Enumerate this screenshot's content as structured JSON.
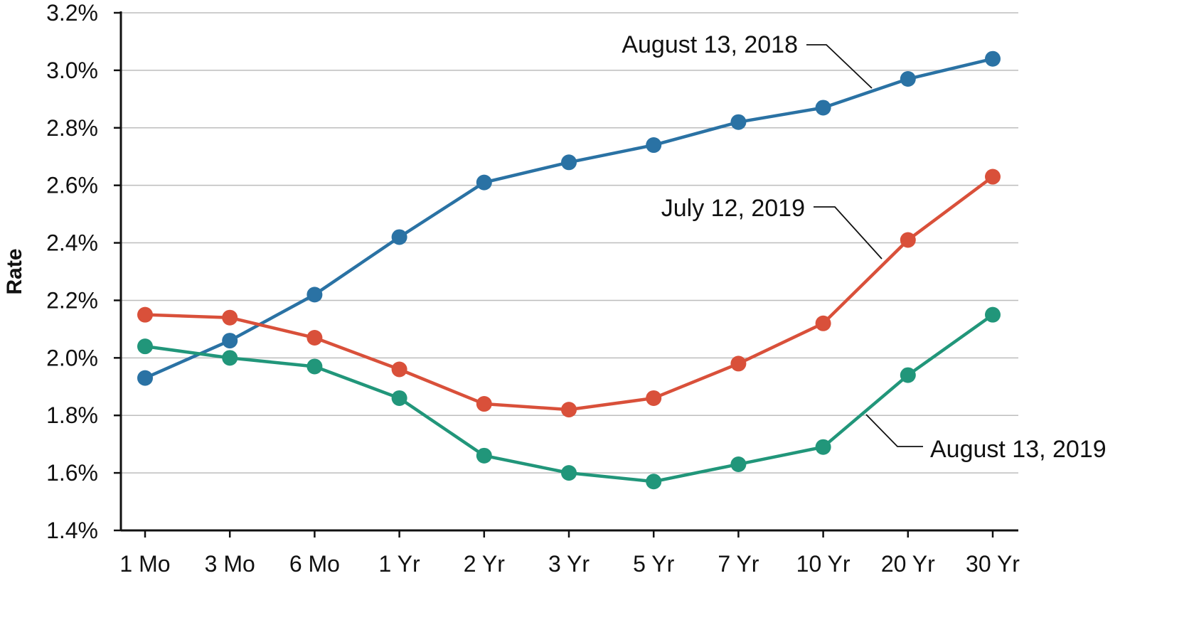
{
  "chart_data": {
    "type": "line",
    "title": "",
    "xlabel": "",
    "ylabel": "Rate",
    "ylim": [
      1.4,
      3.2
    ],
    "y_ticks": [
      "1.4%",
      "1.6%",
      "1.8%",
      "2.0%",
      "2.2%",
      "2.4%",
      "2.6%",
      "2.8%",
      "3.0%",
      "3.2%"
    ],
    "y_tick_values": [
      1.4,
      1.6,
      1.8,
      2.0,
      2.2,
      2.4,
      2.6,
      2.8,
      3.0,
      3.2
    ],
    "grid": true,
    "legend": "callout labels next to lines",
    "categories": [
      "1 Mo",
      "3 Mo",
      "6 Mo",
      "1 Yr",
      "2 Yr",
      "3 Yr",
      "5 Yr",
      "7 Yr",
      "10 Yr",
      "20 Yr",
      "30 Yr"
    ],
    "series": [
      {
        "name": "August 13, 2018",
        "color": "#2a72a4",
        "values": [
          1.93,
          2.06,
          2.22,
          2.42,
          2.61,
          2.68,
          2.74,
          2.82,
          2.87,
          2.97,
          3.04
        ]
      },
      {
        "name": "July 12, 2019",
        "color": "#d9503a",
        "values": [
          2.15,
          2.14,
          2.07,
          1.96,
          1.84,
          1.82,
          1.86,
          1.98,
          2.12,
          2.41,
          2.63
        ]
      },
      {
        "name": "August 13, 2019",
        "color": "#21967a",
        "values": [
          2.04,
          2.0,
          1.97,
          1.86,
          1.66,
          1.6,
          1.57,
          1.63,
          1.69,
          1.94,
          2.15
        ]
      }
    ]
  }
}
